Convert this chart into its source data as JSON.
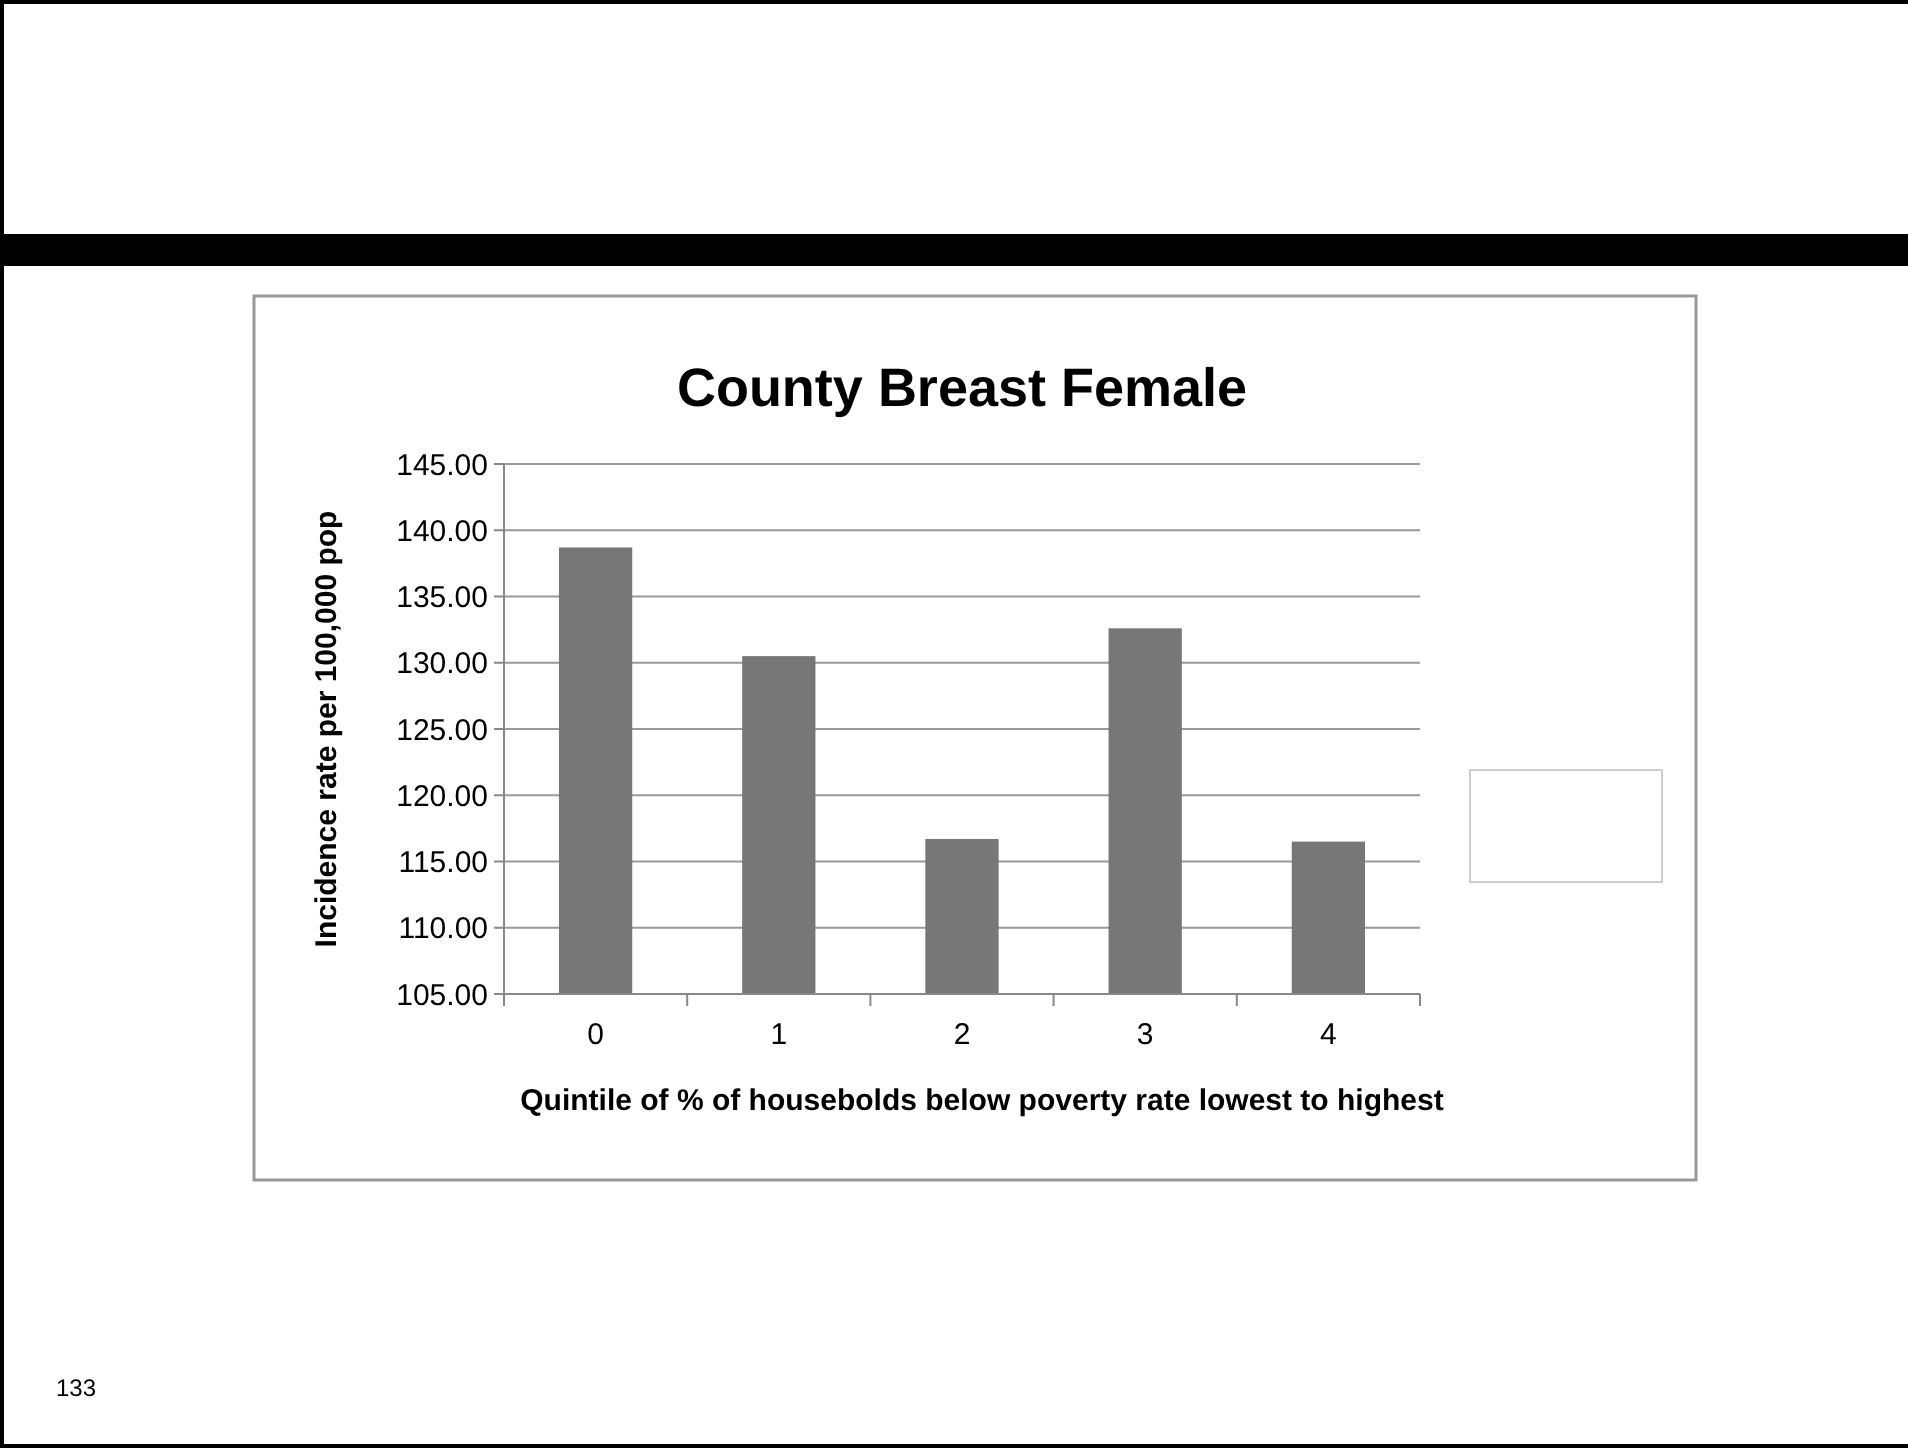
{
  "chart_data": {
    "type": "bar",
    "title": "County Breast Female",
    "xlabel": "Quintile of % of housebolds below poverty rate lowest to highest",
    "ylabel": "Incidence rate per 100,000 pop",
    "categories": [
      "0",
      "1",
      "2",
      "3",
      "4"
    ],
    "values": [
      138.7,
      130.5,
      116.7,
      132.6,
      116.5
    ],
    "color": "#777777",
    "ylim": [
      105,
      145
    ],
    "yticks": [
      {
        "value": 105,
        "label": "105.00"
      },
      {
        "value": 110,
        "label": "110.00"
      },
      {
        "value": 115,
        "label": "115.00"
      },
      {
        "value": 120,
        "label": "120.00"
      },
      {
        "value": 125,
        "label": "125.00"
      },
      {
        "value": 130,
        "label": "130.00"
      },
      {
        "value": 135,
        "label": "135.00"
      },
      {
        "value": 140,
        "label": "140.00"
      },
      {
        "value": 145,
        "label": "145.00"
      }
    ],
    "grid": "y",
    "annotations": [
      "133"
    ]
  }
}
